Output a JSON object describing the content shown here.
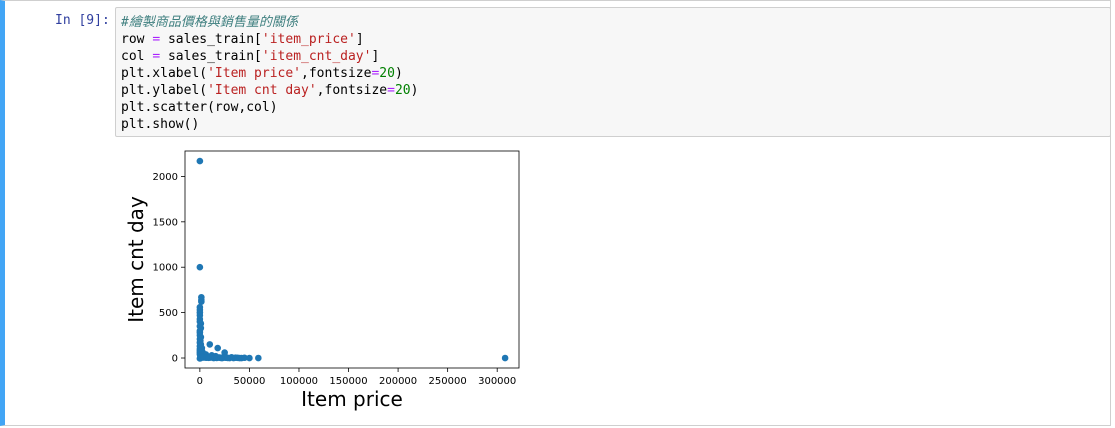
{
  "prompt": "In [9]:",
  "code_lines": [
    [
      {
        "t": "#繪製商品價格與銷售量的關係",
        "c": "comment"
      }
    ],
    [
      {
        "t": "row ",
        "c": ""
      },
      {
        "t": "=",
        "c": "op"
      },
      {
        "t": " sales_train[",
        "c": ""
      },
      {
        "t": "'item_price'",
        "c": "str"
      },
      {
        "t": "]",
        "c": ""
      }
    ],
    [
      {
        "t": "col ",
        "c": ""
      },
      {
        "t": "=",
        "c": "op"
      },
      {
        "t": " sales_train[",
        "c": ""
      },
      {
        "t": "'item_cnt_day'",
        "c": "str"
      },
      {
        "t": "]",
        "c": ""
      }
    ],
    [
      {
        "t": "plt.xlabel(",
        "c": ""
      },
      {
        "t": "'Item price'",
        "c": "str"
      },
      {
        "t": ",fontsize",
        "c": ""
      },
      {
        "t": "=",
        "c": "op"
      },
      {
        "t": "20",
        "c": "num"
      },
      {
        "t": ")",
        "c": ""
      }
    ],
    [
      {
        "t": "plt.ylabel(",
        "c": ""
      },
      {
        "t": "'Item cnt day'",
        "c": "str"
      },
      {
        "t": ",fontsize",
        "c": ""
      },
      {
        "t": "=",
        "c": "op"
      },
      {
        "t": "20",
        "c": "num"
      },
      {
        "t": ")",
        "c": ""
      }
    ],
    [
      {
        "t": "plt.scatter(row,col)",
        "c": ""
      }
    ],
    [
      {
        "t": "plt.show()",
        "c": ""
      }
    ]
  ],
  "colors": {
    "accent": "#42a5f5",
    "point": "#1f77b4"
  },
  "chart_data": {
    "type": "scatter",
    "title": "",
    "xlabel": "Item price",
    "ylabel": "Item cnt day",
    "xlim": [
      -15000,
      322000
    ],
    "ylim": [
      -110,
      2280
    ],
    "xticks": [
      0,
      50000,
      100000,
      150000,
      200000,
      250000,
      300000
    ],
    "yticks": [
      0,
      500,
      1000,
      1500,
      2000
    ],
    "grid": false,
    "points": [
      [
        0,
        2169
      ],
      [
        0,
        1000
      ],
      [
        1500,
        669
      ],
      [
        1500,
        640
      ],
      [
        1500,
        620
      ],
      [
        0,
        560
      ],
      [
        0,
        530
      ],
      [
        0,
        500
      ],
      [
        0,
        470
      ],
      [
        0,
        430
      ],
      [
        0,
        400
      ],
      [
        1000,
        380
      ],
      [
        0,
        350
      ],
      [
        1000,
        330
      ],
      [
        0,
        300
      ],
      [
        0,
        280
      ],
      [
        0,
        250
      ],
      [
        1000,
        230
      ],
      [
        0,
        210
      ],
      [
        500,
        190
      ],
      [
        0,
        170
      ],
      [
        1000,
        150
      ],
      [
        0,
        130
      ],
      [
        2000,
        110
      ],
      [
        0,
        100
      ],
      [
        1500,
        90
      ],
      [
        0,
        80
      ],
      [
        2500,
        70
      ],
      [
        0,
        60
      ],
      [
        3000,
        50
      ],
      [
        0,
        40
      ],
      [
        1000,
        30
      ],
      [
        2000,
        20
      ],
      [
        500,
        10
      ],
      [
        1000,
        0
      ],
      [
        0,
        -5
      ],
      [
        3500,
        35
      ],
      [
        5000,
        25
      ],
      [
        6000,
        40
      ],
      [
        7000,
        20
      ],
      [
        8000,
        10
      ],
      [
        10000,
        150
      ],
      [
        11000,
        5
      ],
      [
        12000,
        30
      ],
      [
        14000,
        0
      ],
      [
        16000,
        20
      ],
      [
        18000,
        110
      ],
      [
        20000,
        5
      ],
      [
        22000,
        0
      ],
      [
        24000,
        10
      ],
      [
        25000,
        60
      ],
      [
        27000,
        5
      ],
      [
        30000,
        0
      ],
      [
        32000,
        8
      ],
      [
        34000,
        0
      ],
      [
        36000,
        4
      ],
      [
        38000,
        2
      ],
      [
        40000,
        0
      ],
      [
        42000,
        0
      ],
      [
        45000,
        3
      ],
      [
        50000,
        0
      ],
      [
        59000,
        0
      ],
      [
        307980,
        0
      ],
      [
        2500,
        10
      ],
      [
        4000,
        5
      ],
      [
        6500,
        3
      ],
      [
        9000,
        2
      ],
      [
        13000,
        6
      ],
      [
        15000,
        3
      ],
      [
        17000,
        1
      ],
      [
        19000,
        5
      ],
      [
        21000,
        2
      ],
      [
        23000,
        1
      ],
      [
        26000,
        3
      ],
      [
        28000,
        1
      ]
    ]
  }
}
